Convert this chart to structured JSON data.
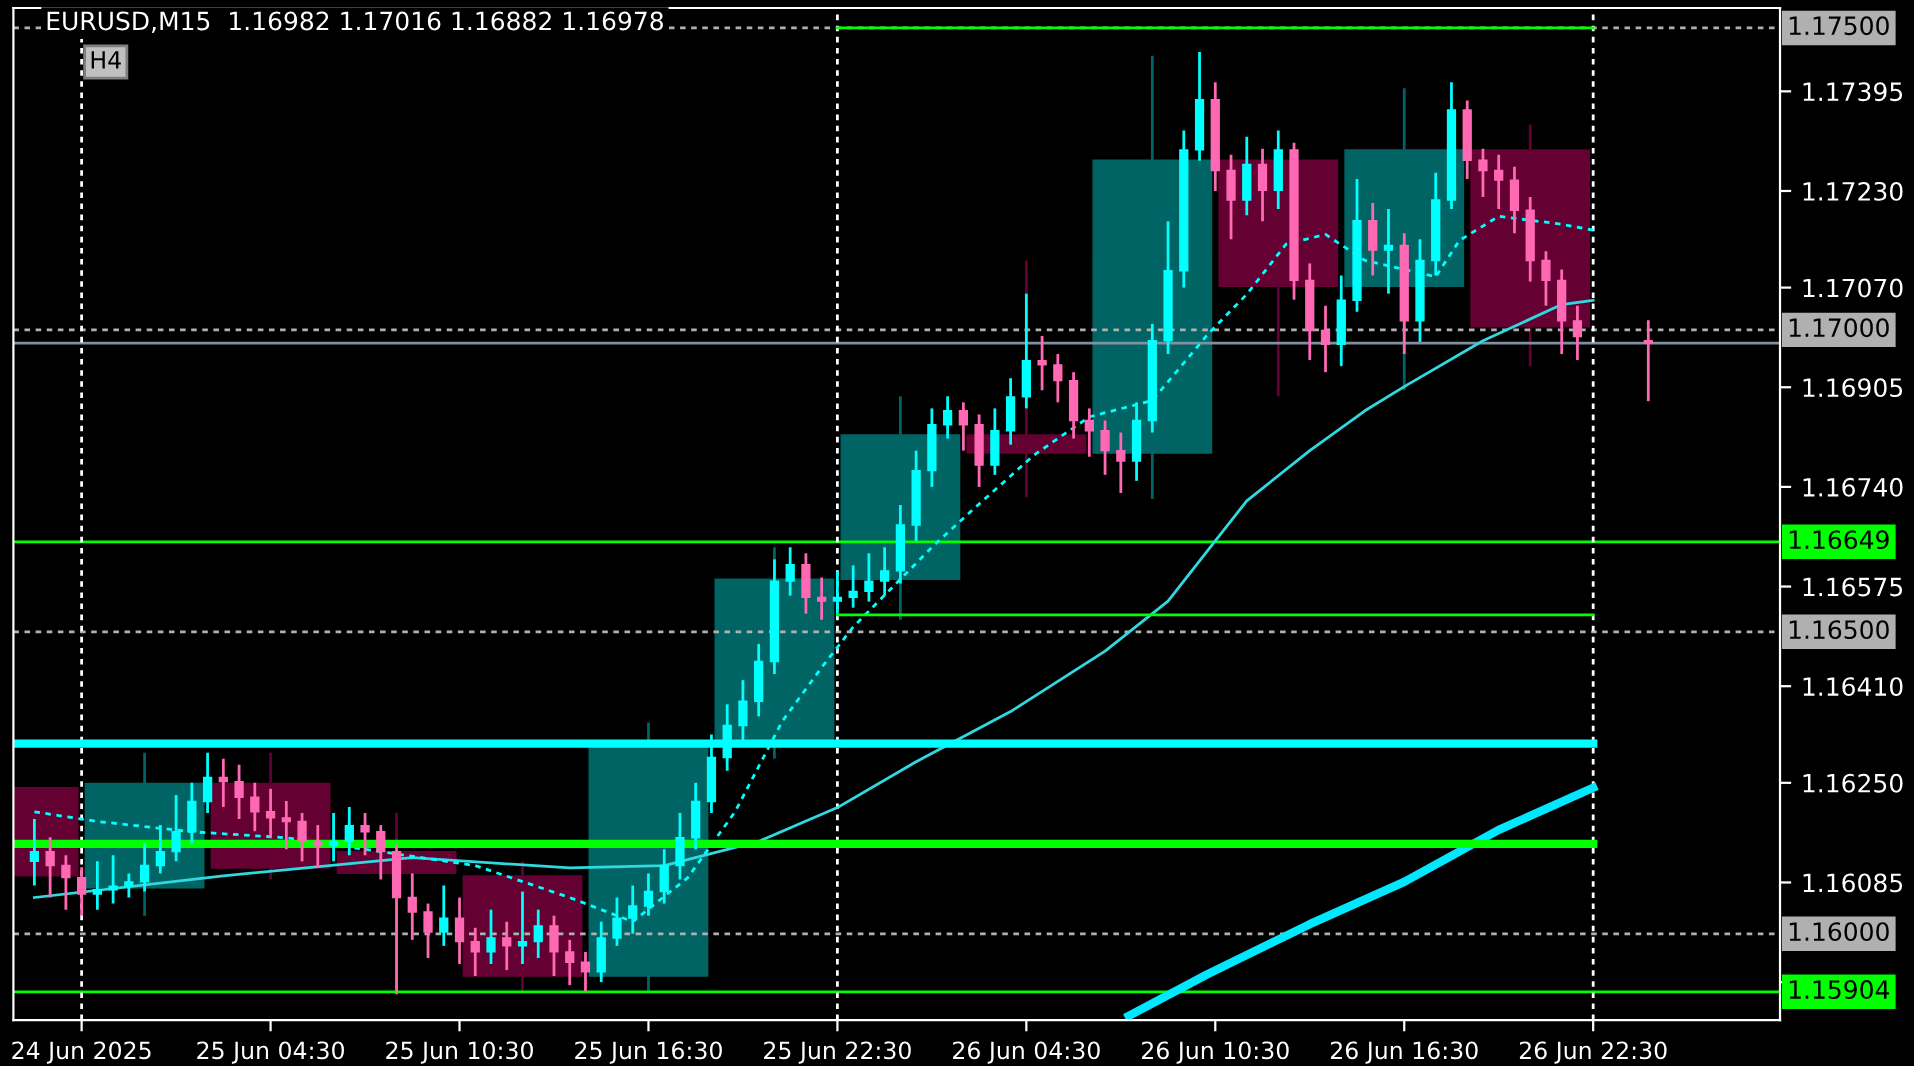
{
  "chart_data": {
    "type": "candlestick",
    "title": "EURUSD,M15  1.16982 1.17016 1.16882 1.16978",
    "annotations": [
      "H4"
    ],
    "xlim": [
      "2025-06-24T20:20",
      "2025-06-27T04:26"
    ],
    "ylim": [
      1.15857,
      1.17533
    ],
    "xticks": [
      {
        "value": "2025-06-24T22:30",
        "label": "24 Jun 2025"
      },
      {
        "value": "2025-06-25T04:30",
        "label": "25 Jun 04:30"
      },
      {
        "value": "2025-06-25T10:30",
        "label": "25 Jun 10:30"
      },
      {
        "value": "2025-06-25T16:30",
        "label": "25 Jun 16:30"
      },
      {
        "value": "2025-06-25T22:30",
        "label": "25 Jun 22:30"
      },
      {
        "value": "2025-06-26T04:30",
        "label": "26 Jun 04:30"
      },
      {
        "value": "2025-06-26T10:30",
        "label": "26 Jun 10:30"
      },
      {
        "value": "2025-06-26T16:30",
        "label": "26 Jun 16:30"
      },
      {
        "value": "2025-06-26T22:30",
        "label": "26 Jun 22:30"
      }
    ],
    "yticks": [
      1.17395,
      {
        "value": 1.1723,
        "label": "1.17230"
      },
      {
        "value": 1.1707,
        "label": "1.17070"
      },
      1.16905,
      {
        "value": 1.1674,
        "label": "1.16740"
      },
      1.16575,
      {
        "value": 1.1641,
        "label": "1.16410"
      },
      {
        "value": 1.1625,
        "label": "1.16250"
      },
      1.16085,
      {
        "value": 1.1592,
        "label": null
      }
    ],
    "ref_lines": [
      {
        "axis": "y",
        "value": 1.175,
        "label": "1.17500",
        "color": "#b0b0b0",
        "line_style": "dashed"
      },
      {
        "axis": "y",
        "value": 1.17,
        "label": "1.17000",
        "color": "#b0b0b0",
        "line_style": "dashed"
      },
      {
        "axis": "y",
        "value": 1.165,
        "label": "1.16500",
        "color": "#b0b0b0",
        "line_style": "dashed"
      },
      {
        "axis": "y",
        "value": 1.16,
        "label": "1.16000",
        "color": "#b0b0b0",
        "line_style": "dashed"
      },
      {
        "axis": "y",
        "value": 1.16978,
        "color": "#8090a0",
        "line_style": "solid"
      },
      {
        "axis": "y",
        "value": 1.16649,
        "label": "1.16649",
        "color": "#00ff00",
        "line_style": "solid"
      },
      {
        "axis": "y",
        "value": 1.15904,
        "label": "1.15904",
        "color": "#00ff00",
        "line_style": "solid"
      },
      {
        "axis": "x",
        "value": "2025-06-24T22:30",
        "color": "#ffffff",
        "line_style": "dashed"
      },
      {
        "axis": "x",
        "value": "2025-06-25T22:30",
        "color": "#ffffff",
        "line_style": "dashed"
      },
      {
        "axis": "x",
        "value": "2025-06-26T22:30",
        "color": "#ffffff",
        "line_style": "dashed"
      }
    ],
    "series": [
      {
        "x": [
          "2025-06-24T20:30",
          "2025-06-25T00:30",
          "2025-06-25T04:30",
          "2025-06-25T08:30",
          "2025-06-25T12:30",
          "2025-06-25T16:30",
          "2025-06-25T20:30",
          "2025-06-26T00:30",
          "2025-06-26T04:30",
          "2025-06-26T08:30",
          "2025-06-26T12:30",
          "2025-06-26T16:30",
          "2025-06-26T20:30"
        ],
        "ohlc": [
          [
            1.16242,
            1.16242,
            1.16096,
            1.16096
          ],
          [
            1.16076,
            1.163,
            1.1603,
            1.16249
          ],
          [
            1.16249,
            1.163,
            1.1609,
            1.16109
          ],
          [
            1.16136,
            1.162,
            1.159,
            1.161
          ],
          [
            1.16096,
            1.1612,
            1.15905,
            1.1593
          ],
          [
            1.1593,
            1.1635,
            1.15905,
            1.16312
          ],
          [
            1.16312,
            1.1664,
            1.1629,
            1.16587
          ],
          [
            1.16587,
            1.1689,
            1.1652,
            1.16826
          ],
          [
            1.16826,
            1.17115,
            1.16723,
            1.16796
          ],
          [
            1.16796,
            1.17454,
            1.1672,
            1.17281
          ],
          [
            1.17281,
            1.17281,
            1.1689,
            1.17072
          ],
          [
            1.17072,
            1.174,
            1.169,
            1.17298
          ],
          [
            1.17298,
            1.1734,
            1.1694,
            1.17005
          ]
        ],
        "colors": [
          "#640032",
          "#006464",
          "#640032",
          "#640032",
          "#640032",
          "#006464",
          "#006464",
          "#006464",
          "#640032",
          "#006464",
          "#640032",
          "#006464",
          "#640032"
        ]
      },
      {
        "type": "line",
        "color": "#30d8e0",
        "line_style": "solid",
        "x": [
          "2025-06-24T21:00",
          "2025-06-25T03:00",
          "2025-06-25T09:00",
          "2025-06-25T14:00",
          "2025-06-25T17:00",
          "2025-06-25T20:00",
          "2025-06-25T22:30",
          "2025-06-26T01:00",
          "2025-06-26T04:00",
          "2025-06-26T07:00",
          "2025-06-26T09:00",
          "2025-06-26T10:15",
          "2025-06-26T11:30",
          "2025-06-26T13:30",
          "2025-06-26T15:15",
          "2025-06-26T16:30",
          "2025-06-26T19:00",
          "2025-06-26T21:30",
          "2025-06-26T22:30"
        ],
        "values": [
          1.1606,
          1.16096,
          1.16126,
          1.16109,
          1.16113,
          1.16153,
          1.16209,
          1.16285,
          1.16368,
          1.16468,
          1.16551,
          1.16634,
          1.16717,
          1.168,
          1.16866,
          1.16906,
          1.16982,
          1.17042,
          1.17049
        ]
      },
      {
        "type": "line",
        "color": "#00ffff",
        "line_style": "dashed",
        "x": [
          "2025-06-24T21:00",
          "2025-06-24T23:00",
          "2025-06-25T02:00",
          "2025-06-25T05:00",
          "2025-06-25T08:00",
          "2025-06-25T11:00",
          "2025-06-25T14:00",
          "2025-06-25T16:00",
          "2025-06-25T17:45",
          "2025-06-25T19:15",
          "2025-06-25T20:45",
          "2025-06-25T22:00",
          "2025-06-25T23:00",
          "2025-06-26T01:30",
          "2025-06-26T02:45",
          "2025-06-26T04:45",
          "2025-06-26T06:30",
          "2025-06-26T08:30",
          "2025-06-26T10:15",
          "2025-06-26T11:30",
          "2025-06-26T12:45",
          "2025-06-26T14:00",
          "2025-06-26T15:15",
          "2025-06-26T17:30",
          "2025-06-26T18:15",
          "2025-06-26T19:30",
          "2025-06-26T21:30",
          "2025-06-26T22:30"
        ],
        "values": [
          1.16202,
          1.16186,
          1.16169,
          1.16159,
          1.16136,
          1.16113,
          1.1606,
          1.1602,
          1.16093,
          1.16202,
          1.16352,
          1.16441,
          1.16508,
          1.1664,
          1.167,
          1.16793,
          1.16856,
          1.16883,
          1.16992,
          1.17059,
          1.17142,
          1.17158,
          1.17115,
          1.17088,
          1.17148,
          1.17188,
          1.17175,
          1.17165
        ]
      },
      {
        "type": "line",
        "color": "#00e8ff",
        "line_style": "solid",
        "x": [
          "2025-06-26T07:45",
          "2025-06-26T10:15",
          "2025-06-26T13:30",
          "2025-06-26T16:30",
          "2025-06-26T19:30",
          "2025-06-26T22:30"
        ],
        "values": [
          1.15864,
          1.15933,
          1.16016,
          1.16086,
          1.16172,
          1.16242
        ]
      },
      {
        "type": "line",
        "color": "#00ff00",
        "line_style": "solid",
        "x": [
          "2025-06-25T22:30",
          "2025-06-26T22:30"
        ],
        "values": [
          1.175,
          1.175
        ]
      },
      {
        "type": "line",
        "color": "#00ff00",
        "line_style": "solid",
        "x": [
          "2025-06-25T22:30",
          "2025-06-26T22:30"
        ],
        "values": [
          1.16528,
          1.16528
        ]
      },
      {
        "type": "line",
        "color": "#00ffff",
        "line_style": "solid",
        "x": [
          "2025-06-24T20:20",
          "2025-06-26T22:30"
        ],
        "values": [
          1.16315,
          1.16315
        ]
      },
      {
        "type": "line",
        "color": "#00ff00",
        "line_style": "solid",
        "x": [
          "2025-06-24T20:20",
          "2025-06-26T22:30"
        ],
        "values": [
          1.16149,
          1.16149
        ]
      },
      {
        "x": [
          "2025-06-24T21:00",
          "2025-06-24T21:30",
          "2025-06-24T22:00",
          "2025-06-24T22:30",
          "2025-06-24T23:00",
          "2025-06-24T23:30",
          "2025-06-25T00:00",
          "2025-06-25T00:30",
          "2025-06-25T01:00",
          "2025-06-25T01:30",
          "2025-06-25T02:00",
          "2025-06-25T02:30",
          "2025-06-25T03:00",
          "2025-06-25T03:30",
          "2025-06-25T04:00",
          "2025-06-25T04:30",
          "2025-06-25T05:00",
          "2025-06-25T05:30",
          "2025-06-25T06:00",
          "2025-06-25T06:30",
          "2025-06-25T07:00",
          "2025-06-25T07:30",
          "2025-06-25T08:00",
          "2025-06-25T08:30",
          "2025-06-25T09:00",
          "2025-06-25T09:30",
          "2025-06-25T10:00",
          "2025-06-25T10:30",
          "2025-06-25T11:00",
          "2025-06-25T11:30",
          "2025-06-25T12:00",
          "2025-06-25T12:30",
          "2025-06-25T13:00",
          "2025-06-25T13:30",
          "2025-06-25T14:00",
          "2025-06-25T14:30",
          "2025-06-25T15:00",
          "2025-06-25T15:30",
          "2025-06-25T16:00",
          "2025-06-25T16:30",
          "2025-06-25T17:00",
          "2025-06-25T17:30",
          "2025-06-25T18:00",
          "2025-06-25T18:30",
          "2025-06-25T19:00",
          "2025-06-25T19:30",
          "2025-06-25T20:00",
          "2025-06-25T20:30",
          "2025-06-25T21:00",
          "2025-06-25T21:30",
          "2025-06-25T22:00",
          "2025-06-25T22:30",
          "2025-06-25T23:00",
          "2025-06-25T23:30",
          "2025-06-26T00:00",
          "2025-06-26T00:30",
          "2025-06-26T01:00",
          "2025-06-26T01:30",
          "2025-06-26T02:00",
          "2025-06-26T02:30",
          "2025-06-26T03:00",
          "2025-06-26T03:30",
          "2025-06-26T04:00",
          "2025-06-26T04:30",
          "2025-06-26T05:00",
          "2025-06-26T05:30",
          "2025-06-26T06:00",
          "2025-06-26T06:30",
          "2025-06-26T07:00",
          "2025-06-26T07:30",
          "2025-06-26T08:00",
          "2025-06-26T08:30",
          "2025-06-26T09:00",
          "2025-06-26T09:30",
          "2025-06-26T10:00",
          "2025-06-26T10:30",
          "2025-06-26T11:00",
          "2025-06-26T11:30",
          "2025-06-26T12:00",
          "2025-06-26T12:30",
          "2025-06-26T13:00",
          "2025-06-26T13:30",
          "2025-06-26T14:00",
          "2025-06-26T14:30",
          "2025-06-26T15:00",
          "2025-06-26T15:30",
          "2025-06-26T16:00",
          "2025-06-26T16:30",
          "2025-06-26T17:00",
          "2025-06-26T17:30",
          "2025-06-26T18:00",
          "2025-06-26T18:30",
          "2025-06-26T19:00",
          "2025-06-26T19:30",
          "2025-06-26T20:00",
          "2025-06-26T20:30",
          "2025-06-26T21:00",
          "2025-06-26T21:30",
          "2025-06-26T22:00",
          "2025-06-27T00:15"
        ],
        "ohlc": [
          [
            1.1612,
            1.1619,
            1.1608,
            1.16136
          ],
          [
            1.16136,
            1.1616,
            1.1606,
            1.16113
          ],
          [
            1.16113,
            1.1613,
            1.1604,
            1.16093
          ],
          [
            1.16093,
            1.1611,
            1.1603,
            1.16066
          ],
          [
            1.16066,
            1.1612,
            1.1604,
            1.16073
          ],
          [
            1.16073,
            1.1613,
            1.1605,
            1.16079
          ],
          [
            1.16079,
            1.161,
            1.1606,
            1.16086
          ],
          [
            1.16086,
            1.1615,
            1.1607,
            1.16113
          ],
          [
            1.16113,
            1.1618,
            1.161,
            1.16136
          ],
          [
            1.16136,
            1.1623,
            1.1612,
            1.16169
          ],
          [
            1.16169,
            1.1625,
            1.1615,
            1.16219
          ],
          [
            1.16219,
            1.163,
            1.162,
            1.16259
          ],
          [
            1.16259,
            1.1629,
            1.1621,
            1.16252
          ],
          [
            1.16252,
            1.1628,
            1.1619,
            1.16226
          ],
          [
            1.16226,
            1.1625,
            1.1617,
            1.16202
          ],
          [
            1.16202,
            1.1624,
            1.1616,
            1.16192
          ],
          [
            1.16192,
            1.1622,
            1.1614,
            1.16186
          ],
          [
            1.16186,
            1.162,
            1.1612,
            1.16153
          ],
          [
            1.16153,
            1.1618,
            1.1611,
            1.16146
          ],
          [
            1.16146,
            1.162,
            1.1612,
            1.16153
          ],
          [
            1.16153,
            1.1621,
            1.1613,
            1.16179
          ],
          [
            1.16179,
            1.162,
            1.1613,
            1.16169
          ],
          [
            1.16169,
            1.1618,
            1.1609,
            1.16136
          ],
          [
            1.16136,
            1.1615,
            1.159,
            1.1606
          ],
          [
            1.1606,
            1.161,
            1.1599,
            1.16036
          ],
          [
            1.16036,
            1.1605,
            1.1596,
            1.16003
          ],
          [
            1.16003,
            1.1608,
            1.1598,
            1.16026
          ],
          [
            1.16026,
            1.1606,
            1.1595,
            1.15987
          ],
          [
            1.15987,
            1.1601,
            1.1593,
            1.1597
          ],
          [
            1.1597,
            1.1604,
            1.1595,
            1.15993
          ],
          [
            1.15993,
            1.1602,
            1.1594,
            1.1598
          ],
          [
            1.1598,
            1.1607,
            1.1595,
            1.15987
          ],
          [
            1.15987,
            1.1604,
            1.1596,
            1.16013
          ],
          [
            1.16013,
            1.1603,
            1.1593,
            1.1597
          ],
          [
            1.1597,
            1.1599,
            1.15915,
            1.15953
          ],
          [
            1.15953,
            1.1597,
            1.15905,
            1.15937
          ],
          [
            1.15937,
            1.1602,
            1.1592,
            1.15993
          ],
          [
            1.15993,
            1.1606,
            1.1598,
            1.16026
          ],
          [
            1.16026,
            1.1608,
            1.16,
            1.16046
          ],
          [
            1.16046,
            1.161,
            1.1603,
            1.1607
          ],
          [
            1.1607,
            1.1614,
            1.1605,
            1.16113
          ],
          [
            1.16113,
            1.162,
            1.1609,
            1.16159
          ],
          [
            1.16159,
            1.1625,
            1.1614,
            1.16219
          ],
          [
            1.16219,
            1.1633,
            1.162,
            1.16292
          ],
          [
            1.16292,
            1.1638,
            1.1627,
            1.16345
          ],
          [
            1.16345,
            1.1642,
            1.1632,
            1.16385
          ],
          [
            1.16385,
            1.1648,
            1.1636,
            1.16451
          ],
          [
            1.16451,
            1.1662,
            1.1643,
            1.16584
          ],
          [
            1.16584,
            1.1664,
            1.1656,
            1.16611
          ],
          [
            1.16611,
            1.1663,
            1.1653,
            1.16557
          ],
          [
            1.16557,
            1.1659,
            1.1652,
            1.16551
          ],
          [
            1.16551,
            1.166,
            1.1653,
            1.16557
          ],
          [
            1.16557,
            1.1661,
            1.1654,
            1.16567
          ],
          [
            1.16567,
            1.1663,
            1.1655,
            1.16584
          ],
          [
            1.16584,
            1.1664,
            1.1656,
            1.16601
          ],
          [
            1.16601,
            1.1671,
            1.1658,
            1.16677
          ],
          [
            1.16677,
            1.168,
            1.1665,
            1.16767
          ],
          [
            1.16767,
            1.1687,
            1.1674,
            1.16843
          ],
          [
            1.16843,
            1.1689,
            1.1682,
            1.16866
          ],
          [
            1.16866,
            1.1688,
            1.168,
            1.16843
          ],
          [
            1.16843,
            1.1686,
            1.1674,
            1.16776
          ],
          [
            1.16776,
            1.1687,
            1.1676,
            1.16833
          ],
          [
            1.16833,
            1.1692,
            1.1681,
            1.16889
          ],
          [
            1.16889,
            1.1706,
            1.1687,
            1.16949
          ],
          [
            1.16949,
            1.1699,
            1.169,
            1.16942
          ],
          [
            1.16942,
            1.1696,
            1.1688,
            1.16916
          ],
          [
            1.16916,
            1.1693,
            1.1682,
            1.1685
          ],
          [
            1.1685,
            1.1687,
            1.1679,
            1.16833
          ],
          [
            1.16833,
            1.1685,
            1.1676,
            1.168
          ],
          [
            1.168,
            1.1683,
            1.1673,
            1.16783
          ],
          [
            1.16783,
            1.1688,
            1.1675,
            1.1685
          ],
          [
            1.1685,
            1.1701,
            1.1683,
            1.16982
          ],
          [
            1.16982,
            1.1718,
            1.1696,
            1.17098
          ],
          [
            1.17098,
            1.1733,
            1.1707,
            1.17298
          ],
          [
            1.17298,
            1.1746,
            1.1728,
            1.17381
          ],
          [
            1.17381,
            1.1741,
            1.1723,
            1.17264
          ],
          [
            1.17264,
            1.1729,
            1.1715,
            1.17215
          ],
          [
            1.17215,
            1.1732,
            1.1719,
            1.17274
          ],
          [
            1.17274,
            1.173,
            1.1718,
            1.17231
          ],
          [
            1.17231,
            1.1733,
            1.172,
            1.17298
          ],
          [
            1.17298,
            1.1731,
            1.1705,
            1.17082
          ],
          [
            1.17082,
            1.1711,
            1.1695,
            1.16999
          ],
          [
            1.16999,
            1.1704,
            1.1693,
            1.16976
          ],
          [
            1.16976,
            1.1709,
            1.1694,
            1.17049
          ],
          [
            1.17049,
            1.1725,
            1.1703,
            1.17181
          ],
          [
            1.17181,
            1.1721,
            1.1709,
            1.17132
          ],
          [
            1.17132,
            1.172,
            1.1706,
            1.1714
          ],
          [
            1.1714,
            1.1716,
            1.1696,
            1.17015
          ],
          [
            1.17015,
            1.1715,
            1.1698,
            1.17115
          ],
          [
            1.17115,
            1.1726,
            1.1709,
            1.17215
          ],
          [
            1.17215,
            1.1741,
            1.172,
            1.17364
          ],
          [
            1.17364,
            1.1738,
            1.1725,
            1.17281
          ],
          [
            1.17281,
            1.173,
            1.1722,
            1.17264
          ],
          [
            1.17264,
            1.1729,
            1.172,
            1.17248
          ],
          [
            1.17248,
            1.1727,
            1.1716,
            1.17198
          ],
          [
            1.17198,
            1.1722,
            1.1708,
            1.17115
          ],
          [
            1.17115,
            1.1713,
            1.1704,
            1.17082
          ],
          [
            1.17082,
            1.171,
            1.1696,
            1.17015
          ],
          [
            1.17015,
            1.1704,
            1.1695,
            1.16989
          ],
          [
            1.16982,
            1.17016,
            1.16882,
            1.16978
          ]
        ],
        "colors": [
          "#00ffff",
          "#ff69b4",
          "#ff69b4",
          "#ff69b4",
          "#00ffff",
          "#00ffff",
          "#00ffff",
          "#00ffff",
          "#00ffff",
          "#00ffff",
          "#00ffff",
          "#00ffff",
          "#ff69b4",
          "#ff69b4",
          "#ff69b4",
          "#ff69b4",
          "#ff69b4",
          "#ff69b4",
          "#ff69b4",
          "#00ffff",
          "#00ffff",
          "#ff69b4",
          "#ff69b4",
          "#ff69b4",
          "#ff69b4",
          "#ff69b4",
          "#00ffff",
          "#ff69b4",
          "#ff69b4",
          "#00ffff",
          "#ff69b4",
          "#00ffff",
          "#00ffff",
          "#ff69b4",
          "#ff69b4",
          "#ff69b4",
          "#00ffff",
          "#00ffff",
          "#00ffff",
          "#00ffff",
          "#00ffff",
          "#00ffff",
          "#00ffff",
          "#00ffff",
          "#00ffff",
          "#00ffff",
          "#00ffff",
          "#00ffff",
          "#00ffff",
          "#ff69b4",
          "#ff69b4",
          "#00ffff",
          "#00ffff",
          "#00ffff",
          "#00ffff",
          "#00ffff",
          "#00ffff",
          "#00ffff",
          "#00ffff",
          "#ff69b4",
          "#ff69b4",
          "#00ffff",
          "#00ffff",
          "#00ffff",
          "#ff69b4",
          "#ff69b4",
          "#ff69b4",
          "#ff69b4",
          "#ff69b4",
          "#ff69b4",
          "#00ffff",
          "#00ffff",
          "#00ffff",
          "#00ffff",
          "#00ffff",
          "#ff69b4",
          "#ff69b4",
          "#00ffff",
          "#ff69b4",
          "#00ffff",
          "#ff69b4",
          "#ff69b4",
          "#ff69b4",
          "#00ffff",
          "#00ffff",
          "#ff69b4",
          "#00ffff",
          "#ff69b4",
          "#00ffff",
          "#00ffff",
          "#00ffff",
          "#ff69b4",
          "#ff69b4",
          "#ff69b4",
          "#ff69b4",
          "#ff69b4",
          "#ff69b4",
          "#ff69b4",
          "#ff69b4",
          "#ff69b4"
        ]
      }
    ]
  }
}
